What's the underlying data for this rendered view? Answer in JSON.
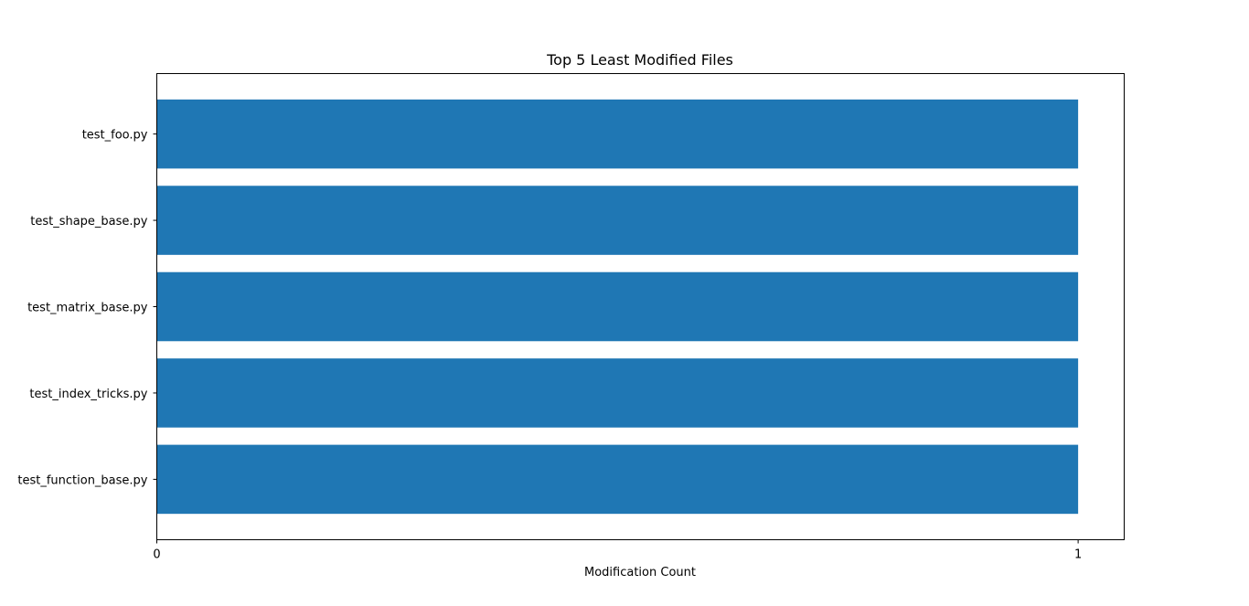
{
  "chart_data": {
    "type": "bar",
    "orientation": "horizontal",
    "title": "Top 5 Least Modified Files",
    "xlabel": "Modification Count",
    "ylabel": "",
    "categories": [
      "test_foo.py",
      "test_shape_base.py",
      "test_matrix_base.py",
      "test_index_tricks.py",
      "test_function_base.py"
    ],
    "values": [
      1,
      1,
      1,
      1,
      1
    ],
    "xlim": [
      0,
      1.05
    ],
    "xticks": [
      "0",
      "1"
    ],
    "bar_color": "#1f77b4",
    "grid": false,
    "legend": "none"
  }
}
